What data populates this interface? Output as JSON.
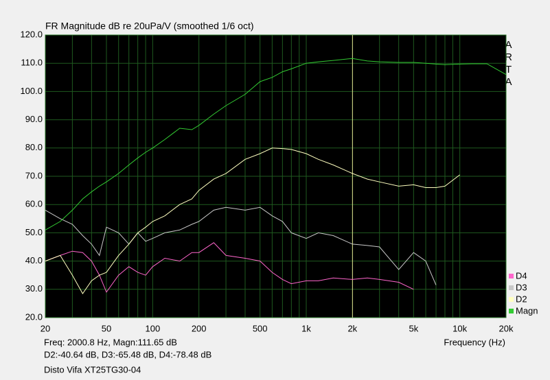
{
  "chart_data": {
    "type": "line",
    "title": "FR Magnitude dB re 20uPa/V (smoothed 1/6 oct)",
    "watermark": "ARTA",
    "xlabel": "Frequency (Hz)",
    "xlog": true,
    "grid": true,
    "xlim": [
      20,
      20000
    ],
    "xticks": [
      20,
      50,
      100,
      200,
      500,
      {
        "value": 1000,
        "label": "1k"
      },
      {
        "value": 2000,
        "label": "2k"
      },
      {
        "value": 5000,
        "label": "5k"
      },
      {
        "value": 10000,
        "label": "10k"
      },
      {
        "value": 20000,
        "label": "20k"
      }
    ],
    "xminor": [
      30,
      40,
      60,
      70,
      80,
      90,
      300,
      400,
      600,
      700,
      800,
      900,
      3000,
      4000,
      6000,
      7000,
      8000,
      9000
    ],
    "ylim": [
      20,
      120
    ],
    "yticks": [
      {
        "value": 20,
        "label": "20.0"
      },
      {
        "value": 30,
        "label": "30.0"
      },
      {
        "value": 40,
        "label": "40.0"
      },
      {
        "value": 50,
        "label": "50.0"
      },
      {
        "value": 60,
        "label": "60.0"
      },
      {
        "value": 70,
        "label": "70.0"
      },
      {
        "value": 80,
        "label": "80.0"
      },
      {
        "value": 90,
        "label": "90.0"
      },
      {
        "value": 100,
        "label": "100.0"
      },
      {
        "value": 110,
        "label": "110.0"
      },
      {
        "value": 120,
        "label": "120.0"
      }
    ],
    "cursor": {
      "x": 2000.8,
      "color": "#e0e090"
    },
    "annotations": [
      "Freq: 2000.8 Hz, Magn:111.65 dB",
      "D2:-40.64 dB, D3:-65.48 dB, D4:-78.48 dB",
      "Disto Vifa XT25TG30-04"
    ],
    "x": [
      20,
      25,
      30,
      35,
      40,
      45,
      50,
      60,
      70,
      80,
      90,
      100,
      120,
      150,
      180,
      200,
      250,
      300,
      400,
      500,
      600,
      700,
      800,
      1000,
      1200,
      1500,
      2000,
      2500,
      3000,
      4000,
      5000,
      6000,
      7000,
      8000,
      10000,
      12000,
      15000,
      20000
    ],
    "series": [
      {
        "name": "Magn",
        "color": "#33cc33",
        "values": [
          51,
          54,
          58,
          62,
          64.5,
          66.5,
          68,
          71,
          74,
          76.5,
          78.5,
          80,
          83,
          87,
          86.5,
          88,
          92,
          95,
          99,
          103.5,
          105,
          107,
          108,
          110,
          110.5,
          111,
          111.7,
          110.8,
          110.5,
          110.3,
          110.3,
          110,
          109.7,
          109.5,
          109.7,
          109.8,
          109.8,
          106
        ]
      },
      {
        "name": "D2",
        "color": "#ffffc0",
        "values": [
          40,
          42,
          35,
          28.5,
          33,
          35,
          36,
          42,
          46,
          50,
          52,
          54,
          56,
          60,
          62,
          65,
          69,
          71,
          76,
          78,
          80,
          79.8,
          79.5,
          78,
          76,
          74,
          71,
          69,
          68,
          66.5,
          67,
          66,
          66,
          66.5,
          70.5,
          null,
          null,
          null
        ]
      },
      {
        "name": "D3",
        "color": "#c8c8c8",
        "values": [
          58,
          55,
          53,
          49,
          46,
          42,
          52,
          50,
          46,
          50,
          47,
          48,
          50,
          51,
          53,
          54,
          58,
          59,
          58,
          59,
          56,
          54,
          50,
          48,
          50,
          49,
          46,
          45.5,
          45,
          37,
          43,
          40,
          31.5,
          null,
          null,
          null,
          null,
          null
        ]
      },
      {
        "name": "D4",
        "color": "#ff66cc",
        "values": [
          40,
          42,
          43.5,
          43,
          40,
          35,
          29,
          35,
          38,
          36,
          35,
          38,
          41,
          40,
          43,
          43,
          46.5,
          42,
          41,
          40,
          36,
          33.5,
          32,
          33,
          33,
          34,
          33.5,
          34,
          33.5,
          32.5,
          30,
          null,
          null,
          null,
          null,
          null,
          null,
          null
        ]
      }
    ]
  }
}
